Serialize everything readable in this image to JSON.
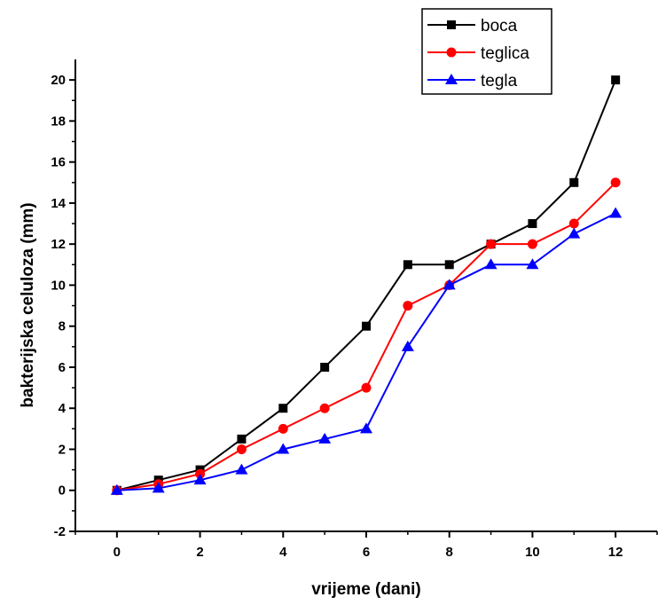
{
  "chart_data": {
    "type": "line",
    "xlabel": "vrijeme (dani)",
    "ylabel": "bakterijska celuloza (mm)",
    "xlim": [
      -1,
      13
    ],
    "ylim": [
      -2,
      21
    ],
    "xticks": [
      0,
      2,
      4,
      6,
      8,
      10,
      12
    ],
    "yticks": [
      -2,
      0,
      2,
      4,
      6,
      8,
      10,
      12,
      14,
      16,
      18,
      20
    ],
    "grid": false,
    "legend_position": "top-right",
    "x": [
      0,
      1,
      2,
      3,
      4,
      5,
      6,
      7,
      8,
      9,
      10,
      11,
      12
    ],
    "series": [
      {
        "name": "boca",
        "color": "#000000",
        "marker": "square",
        "values": [
          0,
          0.5,
          1,
          2.5,
          4,
          6,
          8,
          11,
          11,
          12,
          13,
          15,
          20
        ]
      },
      {
        "name": "teglica",
        "color": "#ff0000",
        "marker": "circle",
        "values": [
          0,
          0.3,
          0.8,
          2,
          3,
          4,
          5,
          9,
          10,
          12,
          12,
          13,
          15
        ]
      },
      {
        "name": "tegla",
        "color": "#0000ff",
        "marker": "triangle",
        "values": [
          0,
          0.1,
          0.5,
          1,
          2,
          2.5,
          3,
          7,
          10,
          11,
          11,
          12.5,
          13.5
        ]
      }
    ]
  }
}
